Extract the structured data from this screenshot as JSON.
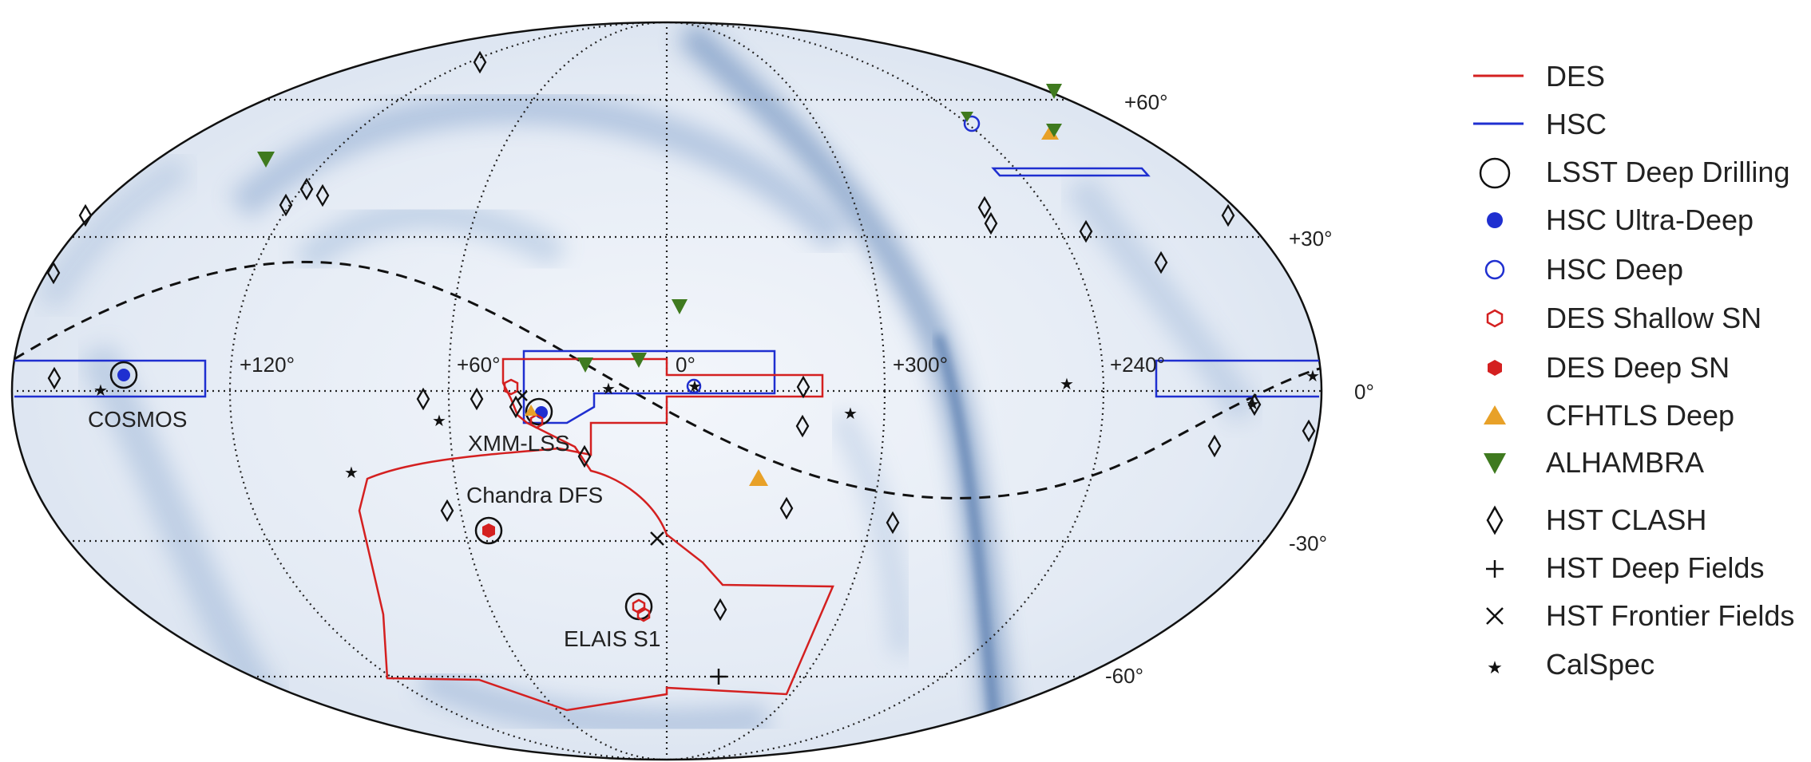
{
  "grid_labels": {
    "lat_p60": "+60°",
    "lat_p30": "+30°",
    "lat_0": "0°",
    "lat_m30": "-30°",
    "lat_m60": "-60°",
    "lon_120": "+120°",
    "lon_60": "+60°",
    "lon_0": "0°",
    "lon_300": "+300°",
    "lon_240": "+240°"
  },
  "field_labels": {
    "cosmos": "COSMOS",
    "xmm": "XMM-LSS",
    "cdfs": "Chandra DFS",
    "elais": "ELAIS S1"
  },
  "legend": [
    {
      "key": "des",
      "label": "DES"
    },
    {
      "key": "hsc",
      "label": "HSC"
    },
    {
      "key": "lsst",
      "label": "LSST Deep Drilling"
    },
    {
      "key": "hsc_ud",
      "label": "HSC Ultra-Deep"
    },
    {
      "key": "hsc_d",
      "label": "HSC Deep"
    },
    {
      "key": "des_shallow",
      "label": "DES Shallow SN"
    },
    {
      "key": "des_deep",
      "label": "DES Deep SN"
    },
    {
      "key": "cfhtls",
      "label": "CFHTLS Deep"
    },
    {
      "key": "alhambra",
      "label": "ALHAMBRA"
    },
    {
      "key": "clash",
      "label": "HST CLASH"
    },
    {
      "key": "deep_fields",
      "label": "HST Deep Fields"
    },
    {
      "key": "frontier",
      "label": "HST Frontier Fields"
    },
    {
      "key": "calspec",
      "label": "CalSpec"
    }
  ],
  "colors": {
    "des": "#d42020",
    "hsc": "#1f2fd0",
    "alhambra": "#3f7a1f",
    "cfhtls": "#e8a128",
    "sky_light": "#e6edf6",
    "sky_dark": "#5f85b8"
  }
}
